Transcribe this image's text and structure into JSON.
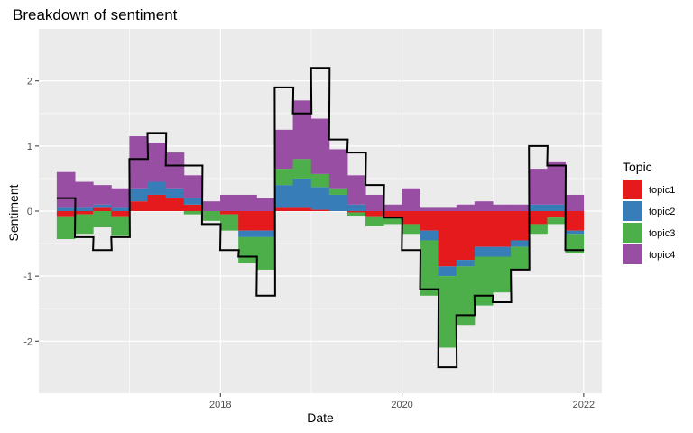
{
  "chart_data": {
    "type": "area",
    "title": "Breakdown of sentiment",
    "xlabel": "Date",
    "ylabel": "Sentiment",
    "x_ticks": [
      "2018",
      "2020",
      "2022"
    ],
    "y_ticks": [
      -2,
      -1,
      0,
      1,
      2
    ],
    "xlim": [
      2016.0,
      2022.2
    ],
    "ylim": [
      -2.8,
      2.8
    ],
    "legend_title": "Topic",
    "legend_position": "right",
    "grid": true,
    "x": [
      2016.3,
      2016.5,
      2016.7,
      2016.9,
      2017.1,
      2017.3,
      2017.5,
      2017.7,
      2017.9,
      2018.1,
      2018.3,
      2018.5,
      2018.7,
      2018.9,
      2019.1,
      2019.3,
      2019.5,
      2019.7,
      2019.9,
      2020.1,
      2020.3,
      2020.5,
      2020.7,
      2020.9,
      2021.1,
      2021.3,
      2021.5,
      2021.7,
      2021.9
    ],
    "series": [
      {
        "name": "topic1",
        "color": "#E41A1C",
        "values": [
          -0.08,
          -0.05,
          0.05,
          -0.08,
          0.15,
          0.25,
          0.2,
          0.1,
          0.0,
          -0.05,
          -0.3,
          -0.3,
          0.05,
          0.05,
          0.02,
          0.0,
          -0.02,
          -0.08,
          -0.1,
          -0.2,
          -0.3,
          -0.85,
          -0.75,
          -0.55,
          -0.55,
          -0.45,
          -0.2,
          -0.1,
          -0.3
        ]
      },
      {
        "name": "topic2",
        "color": "#377EB8",
        "values": [
          0.05,
          0.05,
          0.05,
          0.05,
          0.2,
          0.2,
          0.15,
          0.1,
          0.0,
          0.0,
          -0.1,
          -0.1,
          0.35,
          0.45,
          0.35,
          0.25,
          0.1,
          0.0,
          0.0,
          0.0,
          -0.15,
          -0.15,
          -0.1,
          -0.15,
          -0.15,
          -0.1,
          0.1,
          0.1,
          -0.05
        ]
      },
      {
        "name": "topic3",
        "color": "#4DAF4A",
        "values": [
          -0.35,
          -0.3,
          -0.25,
          -0.3,
          0.0,
          0.0,
          0.0,
          -0.05,
          -0.15,
          -0.25,
          -0.4,
          -0.5,
          0.25,
          0.3,
          0.2,
          0.1,
          -0.05,
          -0.15,
          -0.1,
          -0.15,
          -0.85,
          -1.1,
          -0.9,
          -0.75,
          -0.55,
          -0.35,
          -0.15,
          -0.1,
          -0.3
        ]
      },
      {
        "name": "topic4",
        "color": "#984EA3",
        "values": [
          0.55,
          0.4,
          0.3,
          0.3,
          0.8,
          0.6,
          0.55,
          0.35,
          0.15,
          0.25,
          0.25,
          0.2,
          0.6,
          0.9,
          0.85,
          0.6,
          0.45,
          0.25,
          0.1,
          0.35,
          0.05,
          0.05,
          0.1,
          0.15,
          0.1,
          0.1,
          0.55,
          0.65,
          0.25
        ]
      }
    ],
    "total": {
      "color": "#000000",
      "values": [
        0.2,
        -0.4,
        -0.6,
        -0.4,
        0.8,
        1.2,
        0.7,
        0.7,
        -0.2,
        -0.6,
        -0.7,
        -1.3,
        1.9,
        1.5,
        2.2,
        1.1,
        0.9,
        0.4,
        -0.1,
        -0.6,
        -1.2,
        -2.4,
        -1.6,
        -1.3,
        -1.4,
        -0.9,
        1.0,
        0.7,
        -0.6
      ]
    }
  }
}
